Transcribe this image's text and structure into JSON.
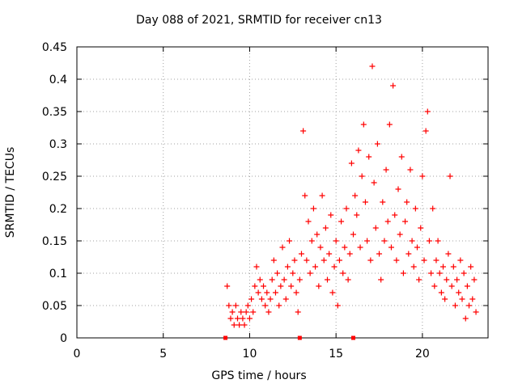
{
  "chart_data": {
    "type": "scatter",
    "title": "Day 088 of 2021, SRMTID for receiver cn13",
    "xlabel": "GPS time / hours",
    "ylabel": "SRMTID / TECUs",
    "xlim": [
      0,
      23.8
    ],
    "ylim": [
      0,
      0.45
    ],
    "x_ticks": [
      0,
      5,
      10,
      15,
      20
    ],
    "y_ticks": [
      0,
      0.05,
      0.1,
      0.15,
      0.2,
      0.25,
      0.3,
      0.35,
      0.4,
      0.45
    ],
    "grid": true,
    "marker": "+",
    "color": "#ff0000",
    "zero_marks": [
      8.6,
      12.9,
      16.0
    ],
    "series": [
      {
        "name": "SRMTID",
        "points": [
          [
            8.7,
            0.08
          ],
          [
            8.8,
            0.05
          ],
          [
            8.9,
            0.03
          ],
          [
            9.0,
            0.04
          ],
          [
            9.1,
            0.02
          ],
          [
            9.2,
            0.05
          ],
          [
            9.3,
            0.03
          ],
          [
            9.4,
            0.02
          ],
          [
            9.5,
            0.04
          ],
          [
            9.6,
            0.03
          ],
          [
            9.7,
            0.02
          ],
          [
            9.8,
            0.04
          ],
          [
            9.9,
            0.05
          ],
          [
            10.0,
            0.03
          ],
          [
            10.1,
            0.06
          ],
          [
            10.2,
            0.04
          ],
          [
            10.3,
            0.08
          ],
          [
            10.4,
            0.11
          ],
          [
            10.5,
            0.07
          ],
          [
            10.6,
            0.09
          ],
          [
            10.7,
            0.06
          ],
          [
            10.8,
            0.08
          ],
          [
            10.9,
            0.05
          ],
          [
            11.0,
            0.07
          ],
          [
            11.1,
            0.04
          ],
          [
            11.2,
            0.06
          ],
          [
            11.3,
            0.09
          ],
          [
            11.4,
            0.12
          ],
          [
            11.5,
            0.07
          ],
          [
            11.6,
            0.1
          ],
          [
            11.7,
            0.05
          ],
          [
            11.8,
            0.08
          ],
          [
            11.9,
            0.14
          ],
          [
            12.0,
            0.09
          ],
          [
            12.1,
            0.06
          ],
          [
            12.2,
            0.11
          ],
          [
            12.3,
            0.15
          ],
          [
            12.4,
            0.08
          ],
          [
            12.5,
            0.1
          ],
          [
            12.6,
            0.12
          ],
          [
            12.7,
            0.07
          ],
          [
            12.8,
            0.04
          ],
          [
            12.9,
            0.09
          ],
          [
            13.0,
            0.13
          ],
          [
            13.1,
            0.32
          ],
          [
            13.2,
            0.22
          ],
          [
            13.3,
            0.12
          ],
          [
            13.4,
            0.18
          ],
          [
            13.5,
            0.1
          ],
          [
            13.6,
            0.15
          ],
          [
            13.7,
            0.2
          ],
          [
            13.8,
            0.11
          ],
          [
            13.9,
            0.16
          ],
          [
            14.0,
            0.08
          ],
          [
            14.1,
            0.14
          ],
          [
            14.2,
            0.22
          ],
          [
            14.3,
            0.12
          ],
          [
            14.4,
            0.17
          ],
          [
            14.5,
            0.09
          ],
          [
            14.6,
            0.13
          ],
          [
            14.7,
            0.19
          ],
          [
            14.8,
            0.07
          ],
          [
            14.9,
            0.11
          ],
          [
            15.0,
            0.15
          ],
          [
            15.1,
            0.05
          ],
          [
            15.2,
            0.12
          ],
          [
            15.3,
            0.18
          ],
          [
            15.4,
            0.1
          ],
          [
            15.5,
            0.14
          ],
          [
            15.6,
            0.2
          ],
          [
            15.7,
            0.09
          ],
          [
            15.8,
            0.13
          ],
          [
            15.9,
            0.27
          ],
          [
            16.0,
            0.16
          ],
          [
            16.1,
            0.22
          ],
          [
            16.2,
            0.19
          ],
          [
            16.3,
            0.29
          ],
          [
            16.4,
            0.14
          ],
          [
            16.5,
            0.25
          ],
          [
            16.6,
            0.33
          ],
          [
            16.7,
            0.21
          ],
          [
            16.8,
            0.15
          ],
          [
            16.9,
            0.28
          ],
          [
            17.0,
            0.12
          ],
          [
            17.1,
            0.42
          ],
          [
            17.2,
            0.24
          ],
          [
            17.3,
            0.17
          ],
          [
            17.4,
            0.3
          ],
          [
            17.5,
            0.13
          ],
          [
            17.6,
            0.09
          ],
          [
            17.7,
            0.21
          ],
          [
            17.8,
            0.15
          ],
          [
            17.9,
            0.26
          ],
          [
            18.0,
            0.18
          ],
          [
            18.1,
            0.33
          ],
          [
            18.2,
            0.14
          ],
          [
            18.3,
            0.39
          ],
          [
            18.4,
            0.19
          ],
          [
            18.5,
            0.12
          ],
          [
            18.6,
            0.23
          ],
          [
            18.7,
            0.16
          ],
          [
            18.8,
            0.28
          ],
          [
            18.9,
            0.1
          ],
          [
            19.0,
            0.18
          ],
          [
            19.1,
            0.21
          ],
          [
            19.2,
            0.13
          ],
          [
            19.3,
            0.26
          ],
          [
            19.4,
            0.15
          ],
          [
            19.5,
            0.11
          ],
          [
            19.6,
            0.2
          ],
          [
            19.7,
            0.14
          ],
          [
            19.8,
            0.09
          ],
          [
            19.9,
            0.17
          ],
          [
            20.0,
            0.25
          ],
          [
            20.1,
            0.12
          ],
          [
            20.2,
            0.32
          ],
          [
            20.3,
            0.35
          ],
          [
            20.4,
            0.15
          ],
          [
            20.5,
            0.1
          ],
          [
            20.6,
            0.2
          ],
          [
            20.7,
            0.08
          ],
          [
            20.8,
            0.12
          ],
          [
            20.9,
            0.15
          ],
          [
            21.0,
            0.1
          ],
          [
            21.1,
            0.07
          ],
          [
            21.2,
            0.11
          ],
          [
            21.3,
            0.06
          ],
          [
            21.4,
            0.09
          ],
          [
            21.5,
            0.13
          ],
          [
            21.6,
            0.25
          ],
          [
            21.7,
            0.08
          ],
          [
            21.8,
            0.11
          ],
          [
            21.9,
            0.05
          ],
          [
            22.0,
            0.09
          ],
          [
            22.1,
            0.07
          ],
          [
            22.2,
            0.12
          ],
          [
            22.3,
            0.06
          ],
          [
            22.4,
            0.1
          ],
          [
            22.5,
            0.03
          ],
          [
            22.6,
            0.08
          ],
          [
            22.7,
            0.05
          ],
          [
            22.8,
            0.11
          ],
          [
            22.9,
            0.06
          ],
          [
            23.0,
            0.09
          ],
          [
            23.1,
            0.04
          ]
        ]
      }
    ]
  }
}
